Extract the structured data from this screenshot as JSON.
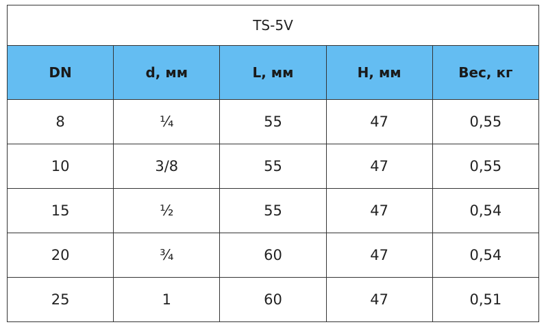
{
  "table": {
    "title": "TS-5V",
    "header": [
      "DN",
      "d, мм",
      "L, мм",
      "H, мм",
      "Вес, кг"
    ],
    "rows": [
      [
        "8",
        "¼",
        "55",
        "47",
        "0,55"
      ],
      [
        "10",
        "3/8",
        "55",
        "47",
        "0,55"
      ],
      [
        "15",
        "½",
        "55",
        "47",
        "0,54"
      ],
      [
        "20",
        "¾",
        "60",
        "47",
        "0,54"
      ],
      [
        "25",
        "1",
        "60",
        "47",
        "0,51"
      ]
    ]
  }
}
